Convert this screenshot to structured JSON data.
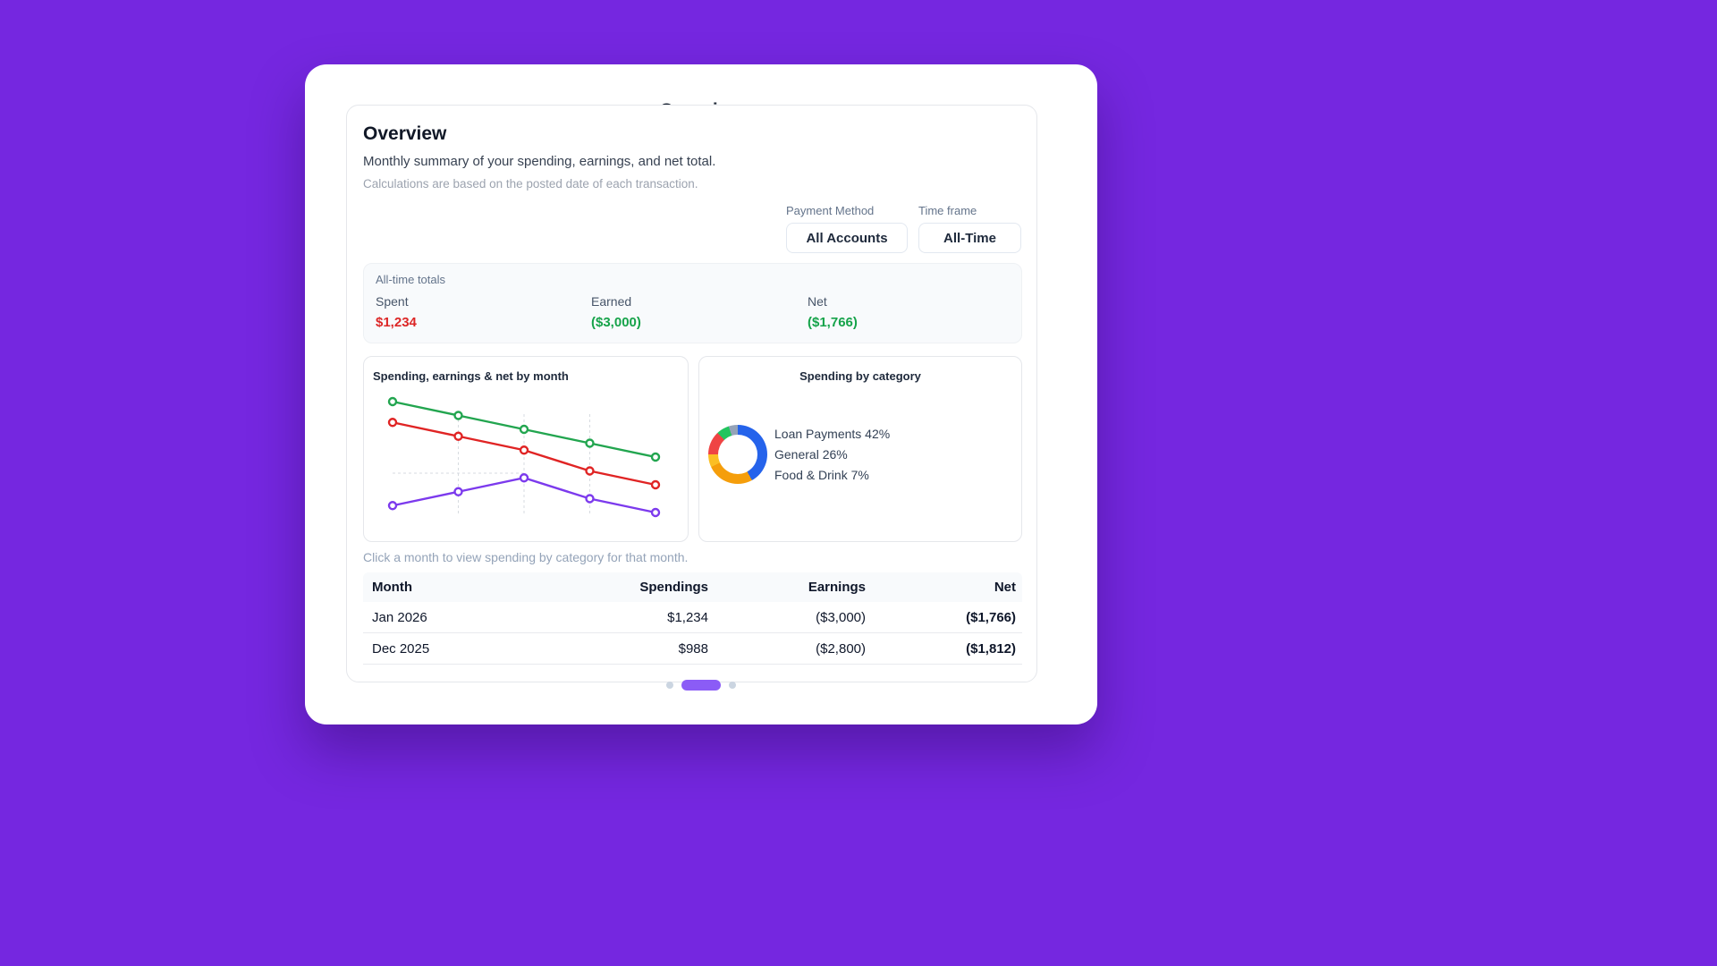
{
  "colors": {
    "background": "#7527e0",
    "accent": "#8b5cf6",
    "spent": "#dc2626",
    "earned": "#16a34a",
    "net": "#16a34a"
  },
  "card": {
    "title": "Overview"
  },
  "header": {
    "title": "Overview",
    "subtitle": "Monthly summary of your spending, earnings, and net total.",
    "note": "Calculations are based on the posted date of each transaction."
  },
  "filters": {
    "payment_method_label": "Payment Method",
    "payment_method_value": "All Accounts",
    "time_frame_label": "Time frame",
    "time_frame_value": "All-Time"
  },
  "totals": {
    "title": "All-time totals",
    "items": [
      {
        "label": "Spent",
        "value": "$1,234",
        "color": "#dc2626"
      },
      {
        "label": "Earned",
        "value": "($3,000)",
        "color": "#16a34a"
      },
      {
        "label": "Net",
        "value": "($1,766)",
        "color": "#16a34a"
      }
    ]
  },
  "charts": {
    "line_title": "Spending, earnings & net by month",
    "donut_title": "Spending by category",
    "legend": [
      "Loan Payments 42%",
      "General 26%",
      "Food & Drink 7%"
    ],
    "caption": "Click a month to view spending by category for that month."
  },
  "chart_data": [
    {
      "type": "line",
      "title": "Spending, earnings & net by month",
      "points": 5,
      "x_labels": [],
      "grid": "dashed",
      "series": [
        {
          "name": "Earnings",
          "color": "#22a54f",
          "values": [
            3000,
            2880,
            2760,
            2640,
            2520
          ]
        },
        {
          "name": "Spendings",
          "color": "#e02424",
          "values": [
            2820,
            2700,
            2580,
            2400,
            2280
          ]
        },
        {
          "name": "Net",
          "color": "#7c3aed",
          "values": [
            2100,
            2220,
            2340,
            2160,
            2040
          ]
        }
      ]
    },
    {
      "type": "pie",
      "title": "Spending by category",
      "slices": [
        {
          "label": "Loan Payments",
          "pct": 42,
          "color": "#2563eb"
        },
        {
          "label": "General",
          "pct": 26,
          "color": "#f59e0b"
        },
        {
          "label": "Food & Drink",
          "pct": 7,
          "color": "#fbbf24"
        },
        {
          "label": "",
          "pct": 13,
          "color": "#ef4444"
        },
        {
          "label": "",
          "pct": 7,
          "color": "#22c55e"
        },
        {
          "label": "",
          "pct": 5,
          "color": "#94a3b8"
        }
      ]
    }
  ],
  "table": {
    "headers": [
      "Month",
      "Spendings",
      "Earnings",
      "Net"
    ],
    "rows": [
      {
        "month": "Jan 2026",
        "spendings": "$1,234",
        "earnings": "($3,000)",
        "net": "($1,766)"
      },
      {
        "month": "Dec 2025",
        "spendings": "$988",
        "earnings": "($2,800)",
        "net": "($1,812)"
      }
    ]
  },
  "pagination": {
    "dots": 3,
    "active_index": 1
  }
}
